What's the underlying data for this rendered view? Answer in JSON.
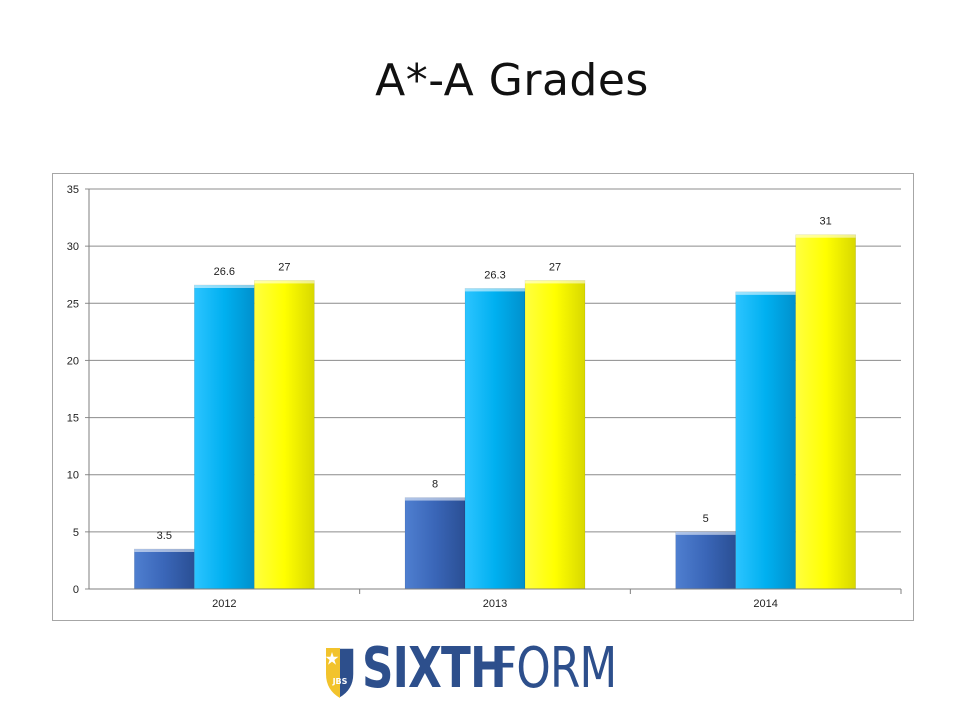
{
  "slide": {
    "title": "A*-A Grades"
  },
  "logo": {
    "word1": "SIXTH",
    "word2": "FORM",
    "crest_text": "JBS"
  },
  "colors": {
    "series1": "#3a66b8",
    "series2": "#00b0f0",
    "series3": "#ffff00",
    "grid": "#8c8c8c",
    "brand": "#2d4f8c"
  },
  "chart_data": {
    "type": "bar",
    "categories": [
      "2012",
      "2013",
      "2014"
    ],
    "series": [
      {
        "values": [
          3.5,
          8,
          5
        ],
        "labels": [
          "3.5",
          "8",
          "5"
        ]
      },
      {
        "values": [
          26.6,
          26.3,
          26
        ],
        "labels": [
          "26.6",
          "26.3",
          ""
        ]
      },
      {
        "values": [
          27,
          27,
          31
        ],
        "labels": [
          "27",
          "27",
          "31"
        ]
      }
    ],
    "ylim": [
      0,
      35
    ],
    "yticks": [
      0,
      5,
      10,
      15,
      20,
      25,
      30,
      35
    ],
    "grid": true,
    "legend": "none"
  }
}
